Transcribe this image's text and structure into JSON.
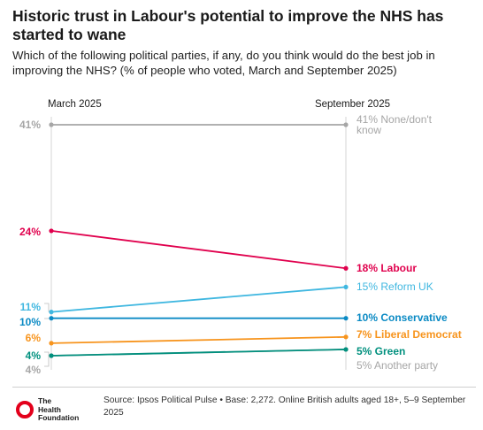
{
  "header": {
    "title": "Historic trust in Labour's potential to improve the NHS has started to wane",
    "subtitle": "Which of the following political parties, if any, do you think would do the best job in improving the NHS? (% of people who voted, March and September 2025)"
  },
  "chart_data": {
    "type": "line",
    "x": [
      "March 2025",
      "September 2025"
    ],
    "ylim": [
      0,
      41
    ],
    "grid": false,
    "legend": "direct labels at right end of lines",
    "series": [
      {
        "name": "None/don't know",
        "values": [
          41,
          41
        ],
        "color": "#a6a6a6",
        "start_label": "41%",
        "end_label": "41% None/don't know"
      },
      {
        "name": "Labour",
        "values": [
          24,
          18
        ],
        "color": "#e0004d",
        "start_label": "24%",
        "end_label": "18% Labour"
      },
      {
        "name": "Reform UK",
        "values": [
          11,
          15
        ],
        "color": "#3fb7e0",
        "start_label": "11%",
        "end_label": "15% Reform UK"
      },
      {
        "name": "Conservative",
        "values": [
          10,
          10
        ],
        "color": "#0a8ac4",
        "start_label": "10%",
        "end_label": "10% Conservative"
      },
      {
        "name": "Liberal Democrat",
        "values": [
          6,
          7
        ],
        "color": "#f7941d",
        "start_label": "6%",
        "end_label": "7% Liberal Democrat"
      },
      {
        "name": "Green",
        "values": [
          4,
          5
        ],
        "color": "#00907e",
        "start_label": "4%",
        "end_label": "5% Green"
      },
      {
        "name": "Another party",
        "values": [
          4,
          5
        ],
        "color": "#a6a6a6",
        "start_label": "4%",
        "end_label": "5% Another party"
      }
    ]
  },
  "footer": {
    "logo_text": "The\nHealth\nFoundation",
    "source": "Source: Ipsos Political Pulse • Base: 2,272. Online British adults aged 18+, 5–9 September 2025"
  }
}
